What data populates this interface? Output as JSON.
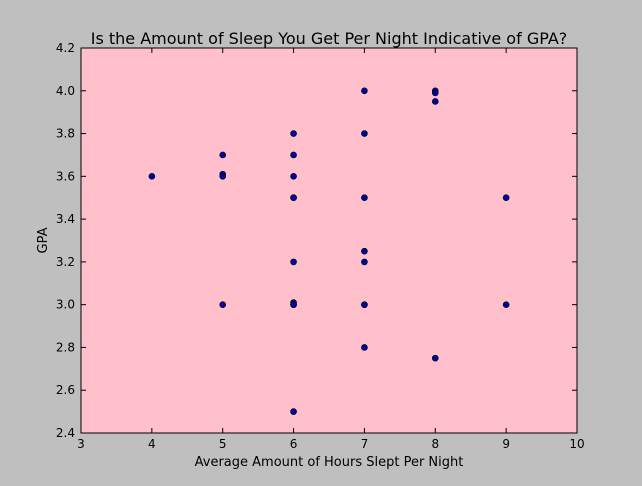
{
  "chart_data": {
    "type": "scatter",
    "title": "Is the Amount of Sleep You Get Per Night Indicative of GPA?",
    "xlabel": "Average Amount of Hours Slept Per Night",
    "ylabel": "GPA",
    "xlim": [
      3,
      10
    ],
    "ylim": [
      2.4,
      4.2
    ],
    "xticks": [
      3,
      4,
      5,
      6,
      7,
      8,
      9,
      10
    ],
    "yticks": [
      "2.4",
      "2.6",
      "2.8",
      "3.0",
      "3.2",
      "3.4",
      "3.6",
      "3.8",
      "4.0",
      "4.2"
    ],
    "grid": false,
    "colors": {
      "figure_background": "#bfbfbf",
      "plot_background": "#ffc0cb",
      "marker": "#0000a0"
    },
    "points": [
      {
        "x": 4,
        "y": 3.6
      },
      {
        "x": 5,
        "y": 3.7
      },
      {
        "x": 5,
        "y": 3.61
      },
      {
        "x": 5,
        "y": 3.6
      },
      {
        "x": 5,
        "y": 3.0
      },
      {
        "x": 6,
        "y": 3.8
      },
      {
        "x": 6,
        "y": 3.7
      },
      {
        "x": 6,
        "y": 3.6
      },
      {
        "x": 6,
        "y": 3.5
      },
      {
        "x": 6,
        "y": 3.5
      },
      {
        "x": 6,
        "y": 3.2
      },
      {
        "x": 6,
        "y": 3.01
      },
      {
        "x": 6,
        "y": 3.0
      },
      {
        "x": 6,
        "y": 3.0
      },
      {
        "x": 6,
        "y": 2.5
      },
      {
        "x": 7,
        "y": 4.0
      },
      {
        "x": 7,
        "y": 3.8
      },
      {
        "x": 7,
        "y": 3.5
      },
      {
        "x": 7,
        "y": 3.25
      },
      {
        "x": 7,
        "y": 3.2
      },
      {
        "x": 7,
        "y": 3.0
      },
      {
        "x": 7,
        "y": 3.0
      },
      {
        "x": 7,
        "y": 2.8
      },
      {
        "x": 8,
        "y": 4.0
      },
      {
        "x": 8,
        "y": 3.99
      },
      {
        "x": 8,
        "y": 3.95
      },
      {
        "x": 8,
        "y": 2.75
      },
      {
        "x": 9,
        "y": 3.5
      },
      {
        "x": 9,
        "y": 3.0
      }
    ]
  }
}
